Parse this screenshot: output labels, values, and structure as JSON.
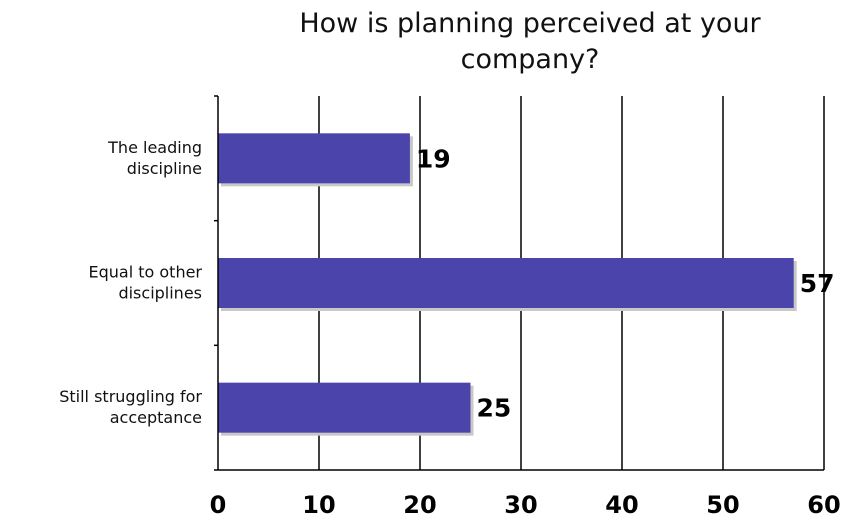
{
  "chart_data": {
    "type": "bar",
    "orientation": "horizontal",
    "title": "How is planning perceived at your company?",
    "categories": [
      "The leading discipline",
      "Equal to other disciplines",
      "Still struggling for acceptance"
    ],
    "category_lines": [
      [
        "The leading",
        "discipline"
      ],
      [
        "Equal to other",
        "disciplines"
      ],
      [
        "Still struggling for",
        "acceptance"
      ]
    ],
    "values": [
      19,
      57,
      25
    ],
    "xlim": [
      0,
      60
    ],
    "x_ticks": [
      "0",
      "10",
      "20",
      "30",
      "40",
      "50",
      "60"
    ],
    "grid": "vertical",
    "bar_color": "#4a44ab",
    "shadow_color": "#c8c8c8",
    "data_labels": [
      "19",
      "57",
      "25"
    ]
  }
}
